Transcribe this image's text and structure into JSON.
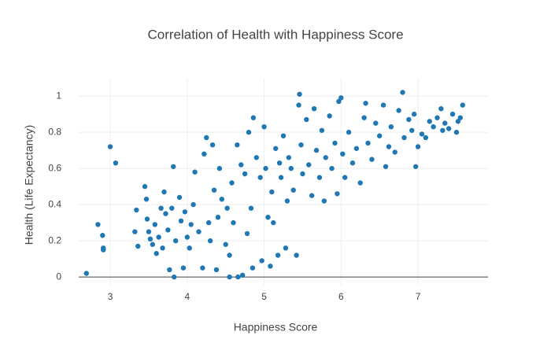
{
  "chart_data": {
    "type": "scatter",
    "title": "Correlation of Health with Happiness Score",
    "x_label": "Happiness Score",
    "y_label": "Health (Life Expectancy)",
    "color": "#1f77b4",
    "grid": true,
    "xlim": [
      2.59,
      7.91
    ],
    "ylim": [
      -0.043,
      1.096
    ],
    "xticks": [
      3,
      4,
      5,
      6,
      7
    ],
    "yticks": [
      0,
      0.2,
      0.4,
      0.6,
      0.8,
      1
    ],
    "x": [
      2.69,
      2.84,
      2.9,
      2.91,
      2.91,
      3.0,
      3.07,
      3.34,
      3.36,
      3.32,
      3.45,
      3.47,
      3.48,
      3.5,
      3.52,
      3.55,
      3.58,
      3.6,
      3.63,
      3.66,
      3.68,
      3.7,
      3.72,
      3.75,
      3.77,
      3.8,
      3.82,
      3.83,
      3.85,
      3.9,
      3.92,
      3.95,
      3.97,
      4.0,
      4.03,
      4.05,
      4.08,
      4.1,
      4.15,
      4.2,
      4.22,
      4.25,
      4.28,
      4.3,
      4.33,
      4.35,
      4.38,
      4.4,
      4.42,
      4.45,
      4.5,
      4.52,
      4.55,
      4.55,
      4.58,
      4.6,
      4.65,
      4.66,
      4.7,
      4.72,
      4.75,
      4.78,
      4.8,
      4.83,
      4.85,
      4.86,
      4.9,
      4.95,
      4.97,
      5.0,
      5.02,
      5.05,
      5.08,
      5.1,
      5.12,
      5.15,
      5.18,
      5.2,
      5.22,
      5.25,
      5.28,
      5.3,
      5.32,
      5.35,
      5.38,
      5.42,
      5.45,
      5.46,
      5.48,
      5.5,
      5.55,
      5.58,
      5.62,
      5.65,
      5.68,
      5.72,
      5.75,
      5.78,
      5.8,
      5.85,
      5.88,
      5.92,
      5.95,
      5.97,
      6.0,
      6.02,
      6.05,
      6.1,
      6.15,
      6.2,
      6.25,
      6.3,
      6.32,
      6.35,
      6.4,
      6.45,
      6.5,
      6.55,
      6.58,
      6.62,
      6.65,
      6.7,
      6.75,
      6.8,
      6.82,
      6.88,
      6.92,
      6.95,
      6.97,
      7.0,
      7.05,
      7.1,
      7.15,
      7.2,
      7.25,
      7.3,
      7.32,
      7.35,
      7.4,
      7.45,
      7.5,
      7.52,
      7.55,
      7.58
    ],
    "values": [
      0.02,
      0.29,
      0.23,
      0.16,
      0.15,
      0.72,
      0.63,
      0.37,
      0.17,
      0.25,
      0.5,
      0.43,
      0.32,
      0.25,
      0.21,
      0.18,
      0.29,
      0.13,
      0.22,
      0.38,
      0.16,
      0.47,
      0.35,
      0.26,
      0.04,
      0.38,
      0.61,
      0.0,
      0.2,
      0.44,
      0.31,
      0.05,
      0.36,
      0.22,
      0.16,
      0.29,
      0.4,
      0.58,
      0.25,
      0.05,
      0.68,
      0.77,
      0.3,
      0.2,
      0.73,
      0.48,
      0.04,
      0.33,
      0.6,
      0.43,
      0.18,
      0.38,
      0.0,
      0.12,
      0.52,
      0.3,
      0.73,
      0.0,
      0.62,
      0.01,
      0.57,
      0.24,
      0.8,
      0.38,
      0.05,
      0.88,
      0.66,
      0.55,
      0.09,
      0.83,
      0.6,
      0.33,
      0.06,
      0.47,
      0.3,
      0.71,
      0.12,
      0.63,
      0.55,
      0.78,
      0.16,
      0.42,
      0.66,
      0.6,
      0.48,
      0.12,
      0.95,
      1.01,
      0.73,
      0.57,
      0.87,
      0.62,
      0.45,
      0.93,
      0.7,
      0.55,
      0.81,
      0.42,
      0.66,
      0.89,
      0.6,
      0.74,
      0.46,
      0.97,
      0.99,
      0.68,
      0.55,
      0.8,
      0.63,
      0.71,
      0.52,
      0.88,
      0.96,
      0.74,
      0.65,
      0.85,
      0.78,
      0.95,
      0.61,
      0.72,
      0.83,
      0.69,
      0.92,
      1.02,
      0.77,
      0.87,
      0.81,
      0.9,
      0.61,
      0.72,
      0.79,
      0.77,
      0.86,
      0.83,
      0.88,
      0.93,
      0.81,
      0.85,
      0.82,
      0.9,
      0.8,
      0.86,
      0.88,
      0.95
    ]
  }
}
